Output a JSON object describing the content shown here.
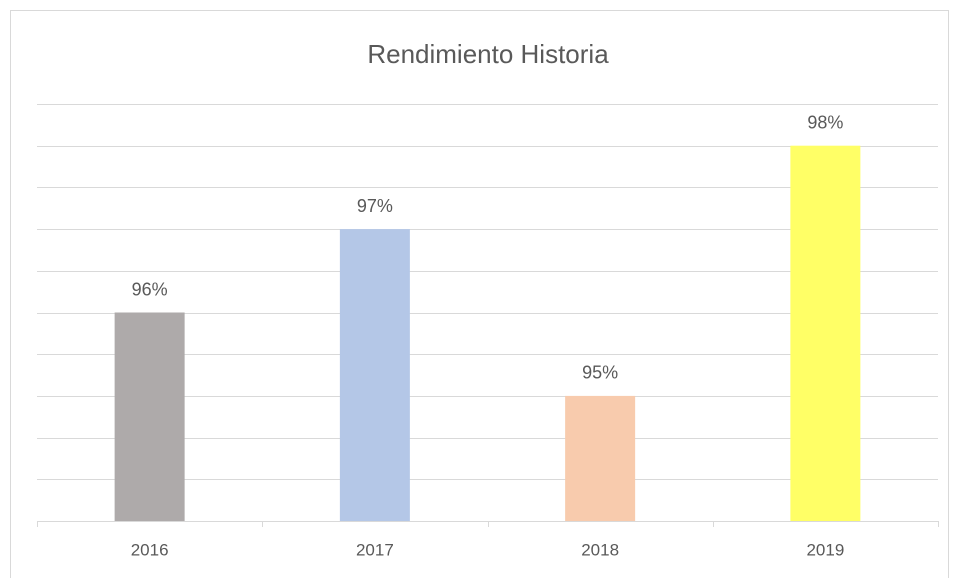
{
  "chart_data": {
    "type": "bar",
    "title": "Rendimiento Historia",
    "categories": [
      "2016",
      "2017",
      "2018",
      "2019"
    ],
    "values": [
      96,
      97,
      95,
      98
    ],
    "value_labels": [
      "96%",
      "97%",
      "95%",
      "98%"
    ],
    "colors": [
      "#aeaaaa",
      "#b4c7e7",
      "#f8cbad",
      "#ffff66"
    ],
    "ylim": [
      93.5,
      98.5
    ],
    "yticks": [
      93.5,
      94,
      94.5,
      95,
      95.5,
      96,
      96.5,
      97,
      97.5,
      98,
      98.5
    ],
    "grid": true
  }
}
